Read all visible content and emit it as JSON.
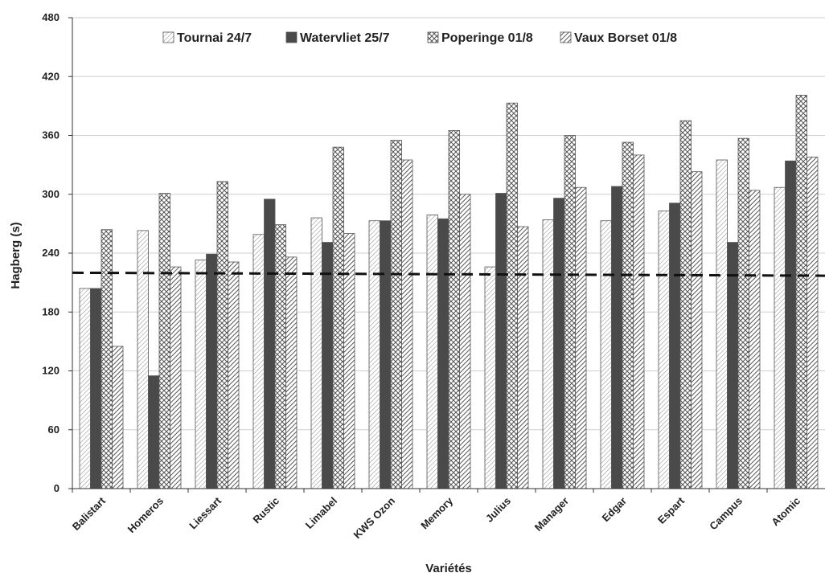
{
  "chart_data": {
    "type": "bar",
    "title": "",
    "xlabel": "Variétés",
    "ylabel": "Hagberg (s)",
    "ylim": [
      0,
      480
    ],
    "yticks": [
      0,
      60,
      120,
      180,
      240,
      300,
      360,
      420,
      480
    ],
    "grid": true,
    "legend_position": "top",
    "categories": [
      "Balistart",
      "Homeros",
      "Liessart",
      "Rustic",
      "Limabel",
      "KWS Ozon",
      "Memory",
      "Julius",
      "Manager",
      "Edgar",
      "Espart",
      "Campus",
      "Atomic"
    ],
    "series": [
      {
        "name": "Tournai 24/7",
        "pattern": "fine-diagonal-light",
        "values": [
          204,
          263,
          233,
          259,
          276,
          273,
          279,
          226,
          274,
          273,
          283,
          335,
          307
        ]
      },
      {
        "name": "Watervliet 25/7",
        "pattern": "solid-dark",
        "values": [
          204,
          115,
          239,
          295,
          251,
          273,
          275,
          301,
          296,
          308,
          291,
          251,
          334
        ]
      },
      {
        "name": "Poperinge 01/8",
        "pattern": "crosshatch",
        "values": [
          264,
          301,
          313,
          269,
          348,
          355,
          365,
          393,
          360,
          353,
          375,
          357,
          401
        ]
      },
      {
        "name": "Vaux Borset 01/8",
        "pattern": "diagonal-dense",
        "values": [
          145,
          226,
          231,
          236,
          260,
          335,
          300,
          267,
          307,
          340,
          323,
          304,
          338
        ]
      }
    ],
    "reference_line": {
      "style": "dashed",
      "value_start": 220,
      "value_end": 217
    },
    "colors": {
      "solid": "#4a4a4a",
      "stroke": "#555555",
      "grid": "#cfcfcf",
      "axis": "#333333",
      "reference": "#111111"
    }
  }
}
